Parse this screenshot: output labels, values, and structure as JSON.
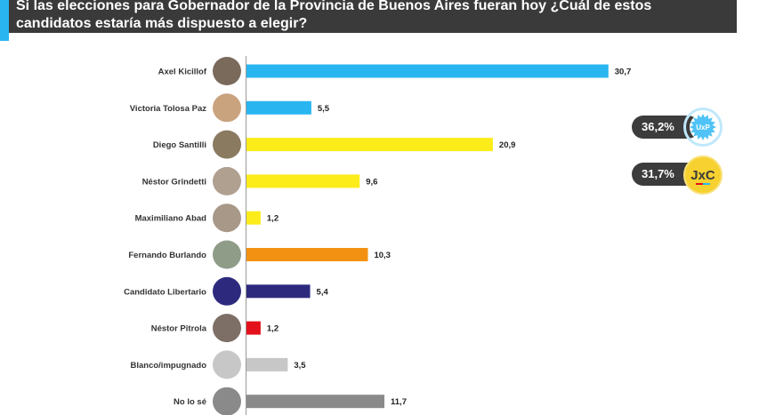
{
  "header": {
    "title": "Si las elecciones para Gobernador de la Provincia de Buenos Aires fueran hoy ¿Cuál de estos candidatos estaría más dispuesto a elegir?"
  },
  "chart_data": {
    "type": "bar",
    "orientation": "horizontal",
    "categories": [
      "Axel Kicillof",
      "Victoria Tolosa Paz",
      "Diego Santilli",
      "Néstor Grindetti",
      "Maximiliano Abad",
      "Fernando Burlando",
      "Candidato Libertario",
      "Néstor Pitrola",
      "Blanco/impugnado",
      "No lo sé"
    ],
    "values": [
      30.7,
      5.5,
      20.9,
      9.6,
      1.2,
      10.3,
      5.4,
      1.2,
      3.5,
      11.7
    ],
    "value_labels": [
      "30,7",
      "5,5",
      "20,9",
      "9,6",
      "1,2",
      "10,3",
      "5,4",
      "1,2",
      "3,5",
      "11,7"
    ],
    "bar_colors": [
      "#29b6f0",
      "#29b6f0",
      "#fcec1a",
      "#fcec1a",
      "#fcec1a",
      "#f39212",
      "#2d2a7e",
      "#e3111b",
      "#c7c7c7",
      "#8a8a8a"
    ],
    "avatar_colors": [
      "#7a6a5c",
      "#c9a27e",
      "#8a7a60",
      "#b0a090",
      "#a89888",
      "#8f9c88",
      "#2d2a7e",
      "#7d6f66",
      "#c7c7c7",
      "#8a8a8a"
    ],
    "xlim": [
      0,
      31
    ],
    "grid": false,
    "legend": "none"
  },
  "coalitions": [
    {
      "value": "36,2%",
      "badge_color": "#4fc3f7",
      "badge_text": "UxP"
    },
    {
      "value": "31,7%",
      "badge_color": "#f6d12f",
      "badge_text": "JxC"
    }
  ]
}
